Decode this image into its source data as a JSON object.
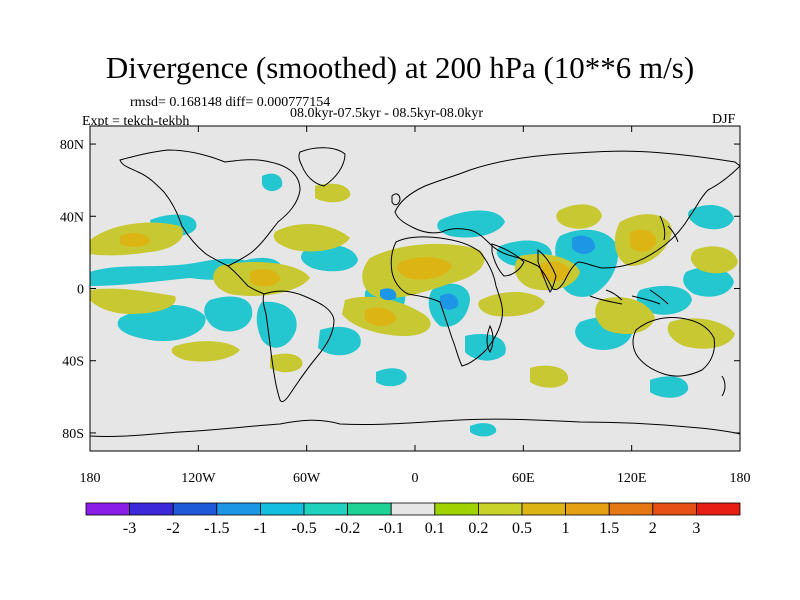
{
  "title": "Divergence (smoothed) at 200 hPa (10**6 m/s)",
  "stats": "rmsd= 0.168148 diff= 0.000777154",
  "periods": "08.0kyr-07.5kyr - 08.5kyr-08.0kyr",
  "experiment": "Expt = tekch-tekbh",
  "season": "DJF",
  "map": {
    "projection": "cylindrical-equidistant",
    "lon_range": [
      -180,
      180
    ],
    "lat_range": [
      -90,
      90
    ],
    "background_color": "#e6e6e6",
    "lat_ticks": [
      {
        "value": 80,
        "label": "80N"
      },
      {
        "value": 40,
        "label": "40N"
      },
      {
        "value": 0,
        "label": "0"
      },
      {
        "value": -40,
        "label": "40S"
      },
      {
        "value": -80,
        "label": "80S"
      }
    ],
    "lon_ticks": [
      {
        "value": -180,
        "label": "180"
      },
      {
        "value": -120,
        "label": "120W"
      },
      {
        "value": -60,
        "label": "60W"
      },
      {
        "value": 0,
        "label": "0"
      },
      {
        "value": 60,
        "label": "60E"
      },
      {
        "value": 120,
        "label": "120E"
      },
      {
        "value": 180,
        "label": "180"
      }
    ]
  },
  "colorbar": {
    "colors": [
      "#8a1ee8",
      "#3c28d8",
      "#1e5ad8",
      "#1e96e6",
      "#14bede",
      "#1ed2be",
      "#1ed296",
      "#e6e6e6",
      "#a0d200",
      "#c8d228",
      "#dcb414",
      "#e6a014",
      "#e67814",
      "#e65014",
      "#e61e14"
    ],
    "labels": [
      "-3",
      "-2",
      "-1.5",
      "-1",
      "-0.5",
      "-0.2",
      "-0.1",
      "0.1",
      "0.2",
      "0.5",
      "1",
      "1.5",
      "2",
      "3"
    ]
  }
}
